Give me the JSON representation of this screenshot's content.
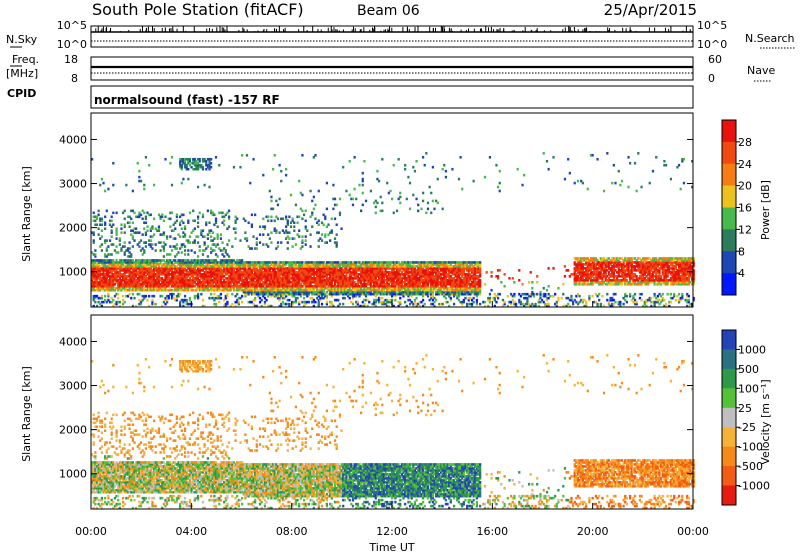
{
  "header": {
    "station": "South Pole Station (fitACF)",
    "beam": "Beam 06",
    "date": "25/Apr/2015"
  },
  "status_panels": {
    "nsky_label": "N.Sky",
    "nsearch_label": "N.Search",
    "freq_label_line1": "Freq.",
    "freq_label_line2": "[MHz]",
    "nave_label": "Nave",
    "cpid_label": "CPID",
    "nsky_ticks": [
      "10^5",
      "10^0"
    ],
    "nsearch_ticks": [
      "10^5",
      "10^0"
    ],
    "freq_ticks": [
      "18",
      "8"
    ],
    "nave_ticks": [
      "60",
      "0"
    ],
    "mode_text": "normalsound (fast) -157 RF"
  },
  "chart_data": [
    {
      "type": "heatmap",
      "title": "Power",
      "ylabel": "Slant Range [km]",
      "xlabel": "Time UT",
      "x_ticks": [
        "00:00",
        "04:00",
        "08:00",
        "12:00",
        "16:00",
        "20:00",
        "00:00"
      ],
      "y_ticks": [
        1000,
        2000,
        3000,
        4000
      ],
      "xlim_hours": [
        0,
        24
      ],
      "ylim_km": [
        200,
        4600
      ],
      "colorbar": {
        "label": "Power [dB]",
        "ticks": [
          "4",
          "8",
          "12",
          "16",
          "20",
          "24",
          "28"
        ],
        "colors": [
          "#0018ff",
          "#1e46b4",
          "#2b7c5a",
          "#47b94d",
          "#ecc21c",
          "#f57d14",
          "#f04a10",
          "#e8130c"
        ]
      }
    },
    {
      "type": "heatmap",
      "title": "Velocity",
      "ylabel": "Slant Range [km]",
      "xlabel": "Time UT",
      "x_ticks": [
        "00:00",
        "04:00",
        "08:00",
        "12:00",
        "16:00",
        "20:00",
        "00:00"
      ],
      "y_ticks": [
        1000,
        2000,
        3000,
        4000
      ],
      "xlim_hours": [
        0,
        24
      ],
      "ylim_km": [
        200,
        4600
      ],
      "colorbar": {
        "label": "Velocity [m s⁻¹]",
        "ticks": [
          "1000",
          "500",
          "100",
          "25",
          "-25",
          "-100",
          "-500",
          "-1000"
        ],
        "colors": [
          "#2443b8",
          "#2a7280",
          "#2d9a4a",
          "#55c138",
          "#bfbfbf",
          "#f6b13a",
          "#f58a1a",
          "#f25c14",
          "#e81b10"
        ]
      }
    }
  ]
}
